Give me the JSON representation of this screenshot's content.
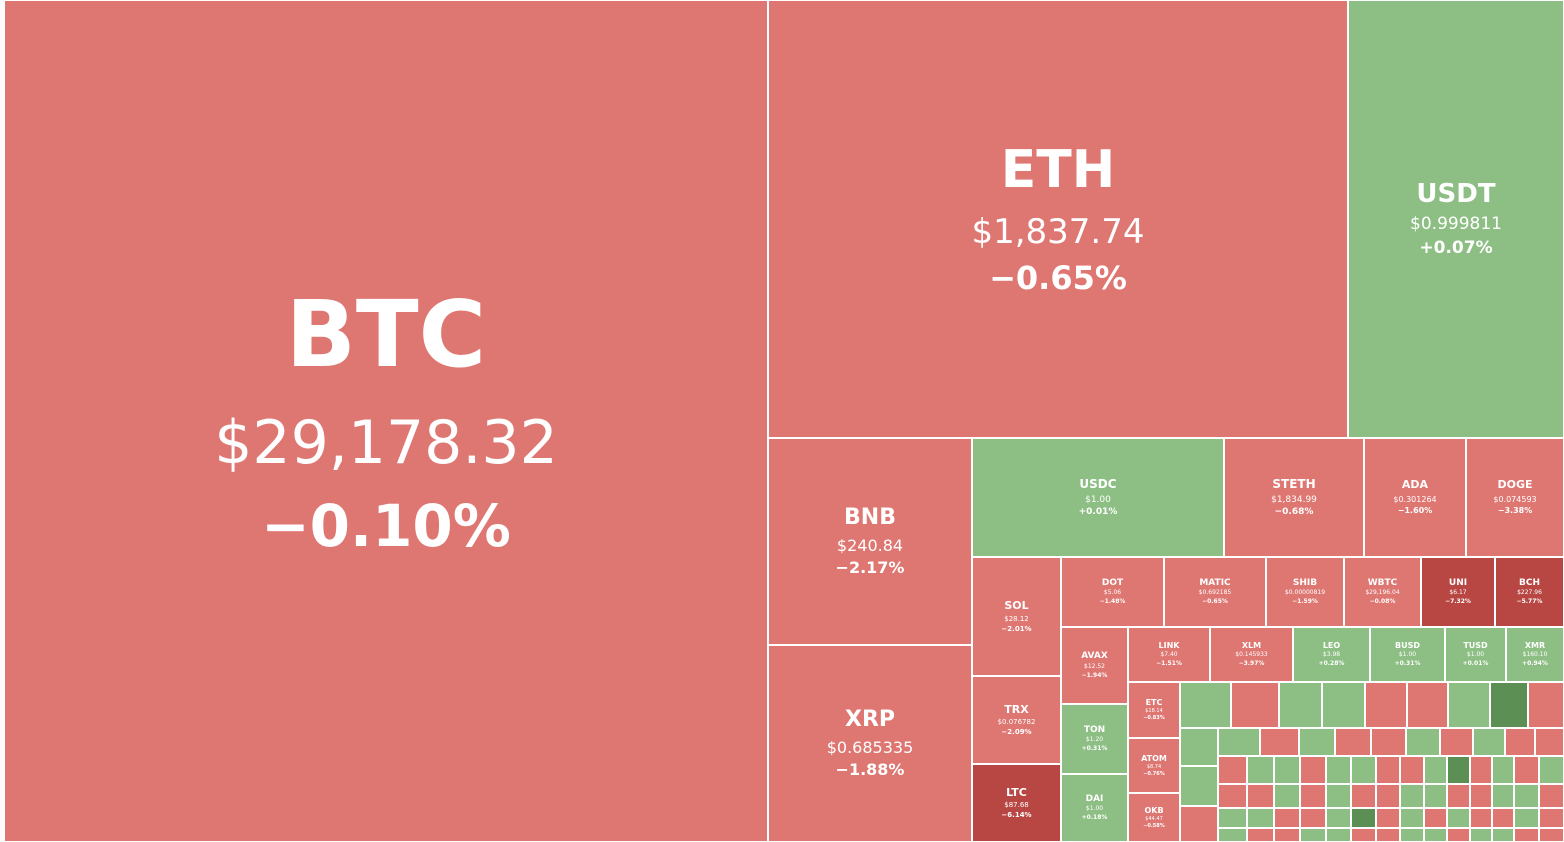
{
  "colors": {
    "down": "#de7672",
    "down_strong": "#b84744",
    "up": "#8dbf84",
    "up_strong": "#5b8f54",
    "border": "#ffffff"
  },
  "chart_data": {
    "type": "treemap",
    "title": "",
    "tiles": [
      {
        "symbol": "BTC",
        "price": "$29,178.32",
        "change": "-0.10%",
        "change_pct": -0.1
      },
      {
        "symbol": "ETH",
        "price": "$1,837.74",
        "change": "-0.65%",
        "change_pct": -0.65
      },
      {
        "symbol": "USDT",
        "price": "$0.999811",
        "change": "+0.07%",
        "change_pct": 0.07
      },
      {
        "symbol": "BNB",
        "price": "$240.84",
        "change": "-2.17%",
        "change_pct": -2.17
      },
      {
        "symbol": "XRP",
        "price": "$0.685335",
        "change": "-1.88%",
        "change_pct": -1.88
      },
      {
        "symbol": "USDC",
        "price": "$1.00",
        "change": "+0.01%",
        "change_pct": 0.01
      },
      {
        "symbol": "STETH",
        "price": "$1,834.99",
        "change": "-0.68%",
        "change_pct": -0.68
      },
      {
        "symbol": "ADA",
        "price": "$0.301264",
        "change": "-1.60%",
        "change_pct": -1.6
      },
      {
        "symbol": "DOGE",
        "price": "$0.074593",
        "change": "-3.38%",
        "change_pct": -3.38
      },
      {
        "symbol": "SOL",
        "price": "$28.12",
        "change": "-2.01%",
        "change_pct": -2.01
      },
      {
        "symbol": "TRX",
        "price": "$0.076782",
        "change": "-2.09%",
        "change_pct": -2.09
      },
      {
        "symbol": "LTC",
        "price": "$87.68",
        "change": "-6.14%",
        "change_pct": -6.14
      },
      {
        "symbol": "DOT",
        "price": "$5.06",
        "change": "-1.48%",
        "change_pct": -1.48
      },
      {
        "symbol": "MATIC",
        "price": "$0.692185",
        "change": "-0.65%",
        "change_pct": -0.65
      },
      {
        "symbol": "SHIB",
        "price": "$0.00000819",
        "change": "-1.59%",
        "change_pct": -1.59
      },
      {
        "symbol": "WBTC",
        "price": "$29,196.04",
        "change": "-0.08%",
        "change_pct": -0.08
      },
      {
        "symbol": "UNI",
        "price": "$6.17",
        "change": "-7.32%",
        "change_pct": -7.32
      },
      {
        "symbol": "BCH",
        "price": "$227.96",
        "change": "-5.77%",
        "change_pct": -5.77
      },
      {
        "symbol": "AVAX",
        "price": "$12.52",
        "change": "-1.94%",
        "change_pct": -1.94
      },
      {
        "symbol": "TON",
        "price": "$1.20",
        "change": "+0.31%",
        "change_pct": 0.31
      },
      {
        "symbol": "DAI",
        "price": "$1.00",
        "change": "+0.18%",
        "change_pct": 0.18
      },
      {
        "symbol": "LINK",
        "price": "$7.40",
        "change": "-1.51%",
        "change_pct": -1.51
      },
      {
        "symbol": "XLM",
        "price": "$0.145933",
        "change": "-3.97%",
        "change_pct": -3.97
      },
      {
        "symbol": "LEO",
        "price": "$3.98",
        "change": "+0.28%",
        "change_pct": 0.28
      },
      {
        "symbol": "BUSD",
        "price": "$1.00",
        "change": "+0.31%",
        "change_pct": 0.31
      },
      {
        "symbol": "TUSD",
        "price": "$1.00",
        "change": "+0.01%",
        "change_pct": 0.01
      },
      {
        "symbol": "XMR",
        "price": "$160.10",
        "change": "+0.94%",
        "change_pct": 0.94
      },
      {
        "symbol": "ETC",
        "price": "$18.14",
        "change": "-0.83%",
        "change_pct": -0.83
      },
      {
        "symbol": "ATOM",
        "price": "$8.74",
        "change": "-0.76%",
        "change_pct": -0.76
      },
      {
        "symbol": "OKB",
        "price": "$44.47",
        "change": "-0.58%",
        "change_pct": -0.58
      }
    ],
    "minor_tiles": 92
  }
}
